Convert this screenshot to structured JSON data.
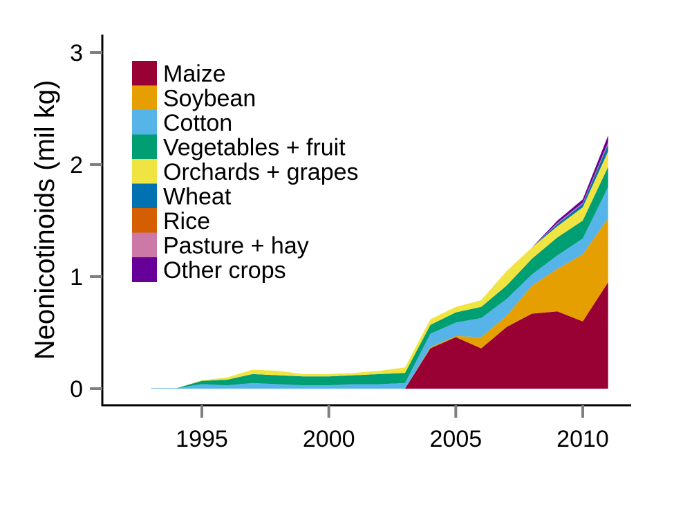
{
  "chart_data": {
    "type": "area",
    "stacked": true,
    "title": "",
    "xlabel": "",
    "ylabel": "Neonicotinoids (mil kg)",
    "xlim": [
      1991.5,
      2012
    ],
    "ylim": [
      0,
      3.1
    ],
    "x_ticks": [
      1995,
      2000,
      2005,
      2010
    ],
    "y_ticks": [
      0,
      1,
      2,
      3
    ],
    "grid": false,
    "legend_position": "top-left",
    "x": [
      1993,
      1994,
      1995,
      1996,
      1997,
      1998,
      1999,
      2000,
      2001,
      2002,
      2003,
      2004,
      2005,
      2006,
      2007,
      2008,
      2009,
      2010,
      2011
    ],
    "series": [
      {
        "name": "Maize",
        "color": "#990033",
        "values": [
          0,
          0,
          0,
          0,
          0,
          0,
          0,
          0,
          0,
          0,
          0,
          0.36,
          0.46,
          0.36,
          0.55,
          0.67,
          0.69,
          0.6,
          0.95
        ]
      },
      {
        "name": "Soybean",
        "color": "#E69F00",
        "values": [
          0,
          0,
          0,
          0,
          0,
          0,
          0,
          0,
          0,
          0,
          0,
          0.01,
          0.01,
          0.1,
          0.1,
          0.25,
          0.38,
          0.6,
          0.57
        ]
      },
      {
        "name": "Cotton",
        "color": "#56B4E9",
        "values": [
          0.005,
          0.005,
          0.04,
          0.03,
          0.05,
          0.04,
          0.03,
          0.03,
          0.04,
          0.04,
          0.05,
          0.12,
          0.12,
          0.17,
          0.15,
          0.1,
          0.12,
          0.14,
          0.28
        ]
      },
      {
        "name": "Vegetables + fruit",
        "color": "#009E73",
        "values": [
          0,
          0,
          0.03,
          0.05,
          0.08,
          0.08,
          0.08,
          0.08,
          0.08,
          0.09,
          0.09,
          0.08,
          0.09,
          0.1,
          0.12,
          0.14,
          0.16,
          0.16,
          0.18
        ]
      },
      {
        "name": "Orchards + grapes",
        "color": "#F0E442",
        "values": [
          0,
          0,
          0.005,
          0.02,
          0.04,
          0.04,
          0.02,
          0.02,
          0.02,
          0.03,
          0.05,
          0.05,
          0.05,
          0.06,
          0.13,
          0.1,
          0.1,
          0.12,
          0.14
        ]
      },
      {
        "name": "Wheat",
        "color": "#0072B2",
        "values": [
          0,
          0,
          0,
          0,
          0,
          0,
          0,
          0,
          0,
          0,
          0,
          0,
          0,
          0,
          0,
          0,
          0.02,
          0.03,
          0.06
        ]
      },
      {
        "name": "Rice",
        "color": "#D55E00",
        "values": [
          0,
          0,
          0,
          0,
          0,
          0,
          0,
          0,
          0,
          0,
          0,
          0,
          0,
          0,
          0,
          0,
          0,
          0,
          0.01
        ]
      },
      {
        "name": "Pasture + hay",
        "color": "#CC79A7",
        "values": [
          0,
          0,
          0,
          0,
          0,
          0,
          0,
          0,
          0,
          0,
          0,
          0,
          0,
          0,
          0,
          0,
          0.01,
          0.01,
          0.01
        ]
      },
      {
        "name": "Other crops",
        "color": "#660099",
        "values": [
          0,
          0,
          0,
          0,
          0,
          0,
          0,
          0,
          0,
          0,
          0,
          0,
          0,
          0,
          0,
          0,
          0.02,
          0.03,
          0.06
        ]
      }
    ]
  }
}
